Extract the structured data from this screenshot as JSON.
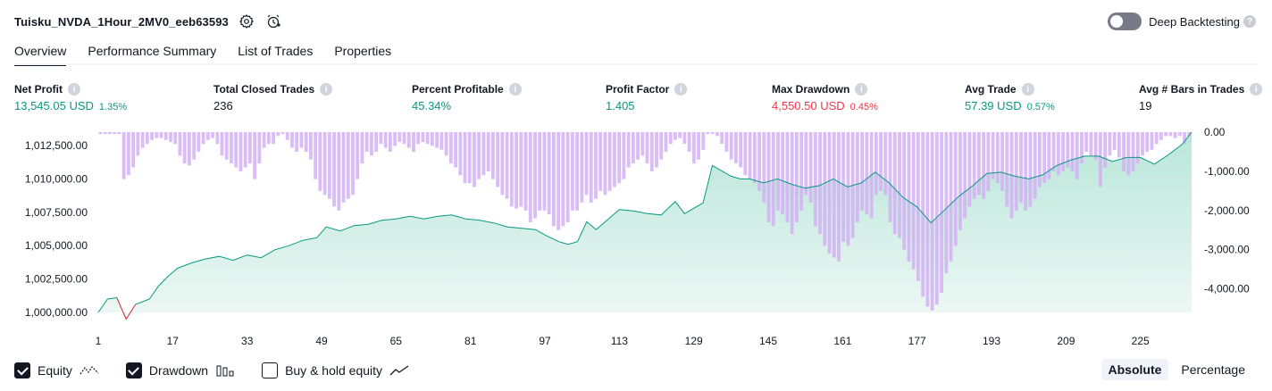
{
  "header": {
    "title": "Tuisku_NVDA_1Hour_2MV0_eeb63593",
    "deep_backtesting_label": "Deep Backtesting",
    "deep_backtesting_enabled": false
  },
  "tabs": [
    {
      "label": "Overview",
      "active": true
    },
    {
      "label": "Performance Summary",
      "active": false
    },
    {
      "label": "List of Trades",
      "active": false
    },
    {
      "label": "Properties",
      "active": false
    }
  ],
  "metrics": {
    "net_profit": {
      "label": "Net Profit",
      "value": "13,545.05 USD",
      "pct": "1.35%"
    },
    "total_closed_trades": {
      "label": "Total Closed Trades",
      "value": "236"
    },
    "percent_profitable": {
      "label": "Percent Profitable",
      "value": "45.34%"
    },
    "profit_factor": {
      "label": "Profit Factor",
      "value": "1.405"
    },
    "max_drawdown": {
      "label": "Max Drawdown",
      "value": "4,550.50 USD",
      "pct": "0.45%"
    },
    "avg_trade": {
      "label": "Avg Trade",
      "value": "57.39 USD",
      "pct": "0.57%"
    },
    "avg_bars": {
      "label": "Avg # Bars in Trades",
      "value": "19"
    }
  },
  "colors": {
    "positive": "#089981",
    "negative": "#f23645",
    "equity_line": "#089981",
    "equity_fill": "#d2f0e8",
    "drawdown_bar": "#d4b0f5"
  },
  "chart_data": {
    "type": "area",
    "x_ticks": [
      1,
      17,
      33,
      49,
      65,
      81,
      97,
      113,
      129,
      145,
      161,
      177,
      193,
      209,
      225
    ],
    "left_axis_ticks": [
      "1,012,500.00",
      "1,010,000.00",
      "1,007,500.00",
      "1,005,000.00",
      "1,002,500.00",
      "1,000,000.00"
    ],
    "right_axis_ticks": [
      "0.00",
      "-1,000.00",
      "-2,000.00",
      "-3,000.00",
      "-4,000.00"
    ],
    "left_ylim": [
      1000000,
      1013500
    ],
    "right_ylim": [
      -4600,
      0
    ],
    "xlim": [
      1,
      236
    ],
    "series": [
      {
        "name": "Equity",
        "kind": "line",
        "points": [
          [
            1,
            1000000
          ],
          [
            3,
            1001000
          ],
          [
            5,
            1001100
          ],
          [
            7,
            999500
          ],
          [
            9,
            1000600
          ],
          [
            12,
            1001000
          ],
          [
            14,
            1002000
          ],
          [
            16,
            1002700
          ],
          [
            18,
            1003300
          ],
          [
            21,
            1003700
          ],
          [
            24,
            1004000
          ],
          [
            27,
            1004200
          ],
          [
            30,
            1003900
          ],
          [
            33,
            1004300
          ],
          [
            36,
            1004100
          ],
          [
            39,
            1004700
          ],
          [
            42,
            1005000
          ],
          [
            45,
            1005400
          ],
          [
            48,
            1005600
          ],
          [
            50,
            1006400
          ],
          [
            53,
            1006100
          ],
          [
            56,
            1006500
          ],
          [
            59,
            1006600
          ],
          [
            62,
            1006900
          ],
          [
            65,
            1007000
          ],
          [
            68,
            1007200
          ],
          [
            71,
            1007000
          ],
          [
            74,
            1007200
          ],
          [
            77,
            1007300
          ],
          [
            80,
            1007000
          ],
          [
            83,
            1006900
          ],
          [
            86,
            1006700
          ],
          [
            89,
            1006400
          ],
          [
            92,
            1006300
          ],
          [
            95,
            1006200
          ],
          [
            97,
            1005800
          ],
          [
            100,
            1005300
          ],
          [
            102,
            1005100
          ],
          [
            104,
            1005300
          ],
          [
            106,
            1006800
          ],
          [
            108,
            1006200
          ],
          [
            110,
            1006800
          ],
          [
            113,
            1007700
          ],
          [
            116,
            1007600
          ],
          [
            119,
            1007400
          ],
          [
            122,
            1007300
          ],
          [
            125,
            1008300
          ],
          [
            127,
            1007400
          ],
          [
            129,
            1007800
          ],
          [
            131,
            1008200
          ],
          [
            133,
            1011000
          ],
          [
            135,
            1010600
          ],
          [
            137,
            1010200
          ],
          [
            139,
            1010000
          ],
          [
            141,
            1010000
          ],
          [
            144,
            1009700
          ],
          [
            147,
            1010000
          ],
          [
            150,
            1009600
          ],
          [
            153,
            1009300
          ],
          [
            156,
            1009500
          ],
          [
            159,
            1010000
          ],
          [
            162,
            1009400
          ],
          [
            165,
            1009700
          ],
          [
            168,
            1010500
          ],
          [
            171,
            1009700
          ],
          [
            174,
            1008600
          ],
          [
            177,
            1007900
          ],
          [
            180,
            1006700
          ],
          [
            183,
            1007700
          ],
          [
            186,
            1008700
          ],
          [
            189,
            1009500
          ],
          [
            192,
            1010400
          ],
          [
            195,
            1010500
          ],
          [
            198,
            1010200
          ],
          [
            201,
            1010000
          ],
          [
            204,
            1010300
          ],
          [
            207,
            1011000
          ],
          [
            210,
            1011400
          ],
          [
            213,
            1011700
          ],
          [
            216,
            1011700
          ],
          [
            219,
            1011300
          ],
          [
            222,
            1011600
          ],
          [
            225,
            1011600
          ],
          [
            228,
            1011100
          ],
          [
            231,
            1011800
          ],
          [
            234,
            1012600
          ],
          [
            236,
            1013500
          ]
        ]
      },
      {
        "name": "Drawdown",
        "kind": "bar",
        "values": [
          -50,
          -50,
          -50,
          -50,
          -50,
          -1200,
          -1100,
          -900,
          -600,
          -400,
          -300,
          -200,
          -150,
          -150,
          -200,
          -250,
          -300,
          -600,
          -800,
          -850,
          -700,
          -500,
          -300,
          -200,
          -150,
          -300,
          -600,
          -700,
          -800,
          -900,
          -1000,
          -900,
          -800,
          -1200,
          -800,
          -400,
          -300,
          -300,
          -100,
          -50,
          -200,
          -400,
          -500,
          -400,
          -500,
          -700,
          -1200,
          -1500,
          -1600,
          -1700,
          -1900,
          -2000,
          -1800,
          -1700,
          -1600,
          -1200,
          -800,
          -500,
          -600,
          -500,
          -300,
          -400,
          -500,
          -350,
          -250,
          -300,
          -400,
          -500,
          -300,
          -250,
          -300,
          -350,
          -400,
          -450,
          -600,
          -800,
          -900,
          -1100,
          -1300,
          -1300,
          -1400,
          -1200,
          -1100,
          -1000,
          -1200,
          -1400,
          -1600,
          -1700,
          -1900,
          -1950,
          -1900,
          -2000,
          -2300,
          -2200,
          -2000,
          -2000,
          -2100,
          -2400,
          -2500,
          -2400,
          -2300,
          -2000,
          -2000,
          -1800,
          -1600,
          -1800,
          -1700,
          -1500,
          -1600,
          -1500,
          -1400,
          -1300,
          -1200,
          -900,
          -800,
          -700,
          -600,
          -800,
          -1000,
          -900,
          -700,
          -500,
          -300,
          -200,
          -150,
          -300,
          -500,
          -800,
          -700,
          -450,
          -50,
          -50,
          -100,
          -300,
          -500,
          -700,
          -800,
          -900,
          -1100,
          -1200,
          -1300,
          -1500,
          -1800,
          -2300,
          -2400,
          -2000,
          -2100,
          -2300,
          -2600,
          -2300,
          -2000,
          -1600,
          -1800,
          -2400,
          -2600,
          -2900,
          -3100,
          -3200,
          -3300,
          -2800,
          -2900,
          -2700,
          -2300,
          -2000,
          -2100,
          -2200,
          -1600,
          -1500,
          -1600,
          -2300,
          -2600,
          -2700,
          -3000,
          -3300,
          -3500,
          -3800,
          -4200,
          -4450,
          -4550,
          -4400,
          -4100,
          -3600,
          -3300,
          -2900,
          -2500,
          -2200,
          -1900,
          -1700,
          -1600,
          -1700,
          -1500,
          -1200,
          -1300,
          -1500,
          -1900,
          -2200,
          -2000,
          -1800,
          -2000,
          -1900,
          -1700,
          -1400,
          -1300,
          -1200,
          -1000,
          -1100,
          -1000,
          -900,
          -1000,
          -1200,
          -800,
          -500,
          -600,
          -700,
          -1400,
          -900,
          -600,
          -450,
          -650,
          -1000,
          -1100,
          -1000,
          -800,
          -600,
          -500,
          -450,
          -300,
          -200,
          -100,
          -100,
          -150,
          -100,
          -300,
          -100
        ]
      }
    ]
  },
  "footer": {
    "equity_label": "Equity",
    "equity_checked": true,
    "drawdown_label": "Drawdown",
    "drawdown_checked": true,
    "buyhold_label": "Buy & hold equity",
    "buyhold_checked": false,
    "absolute_label": "Absolute",
    "percentage_label": "Percentage",
    "mode": "Absolute"
  }
}
